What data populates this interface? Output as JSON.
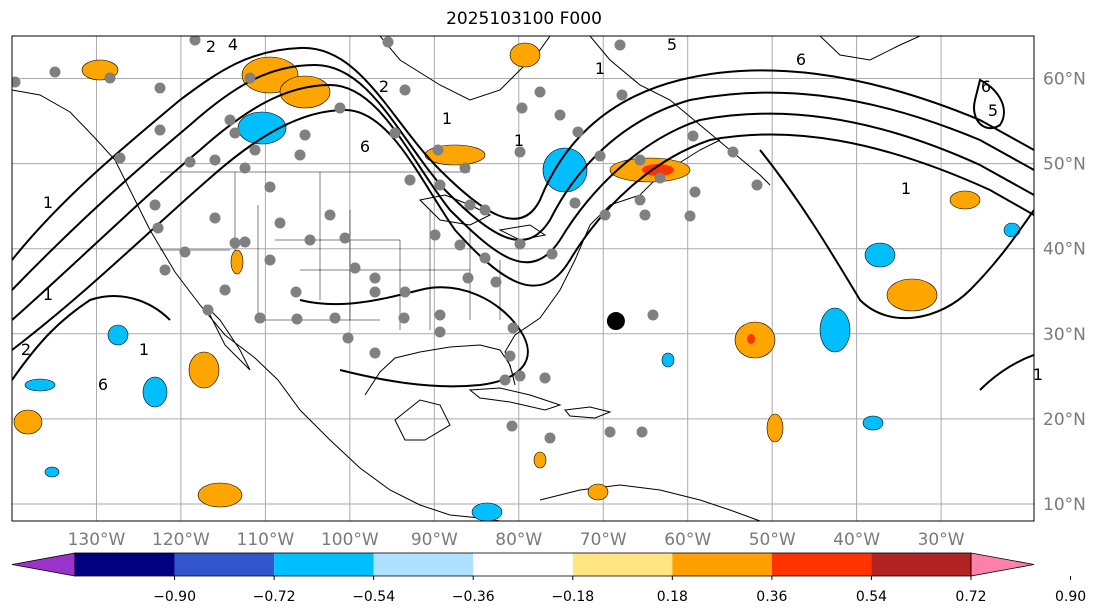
{
  "title": "2025103100 F000",
  "map": {
    "lat_ticks": [
      {
        "value": 60,
        "label": "60°N"
      },
      {
        "value": 50,
        "label": "50°N"
      },
      {
        "value": 40,
        "label": "40°N"
      },
      {
        "value": 30,
        "label": "30°N"
      },
      {
        "value": 20,
        "label": "20°N"
      },
      {
        "value": 10,
        "label": "10°N"
      }
    ],
    "lon_ticks": [
      {
        "value": -130,
        "label": "130°W"
      },
      {
        "value": -120,
        "label": "120°W"
      },
      {
        "value": -110,
        "label": "110°W"
      },
      {
        "value": -100,
        "label": "100°W"
      },
      {
        "value": -90,
        "label": "90°W"
      },
      {
        "value": -80,
        "label": "80°W"
      },
      {
        "value": -70,
        "label": "70°W"
      },
      {
        "value": -60,
        "label": "60°W"
      },
      {
        "value": -50,
        "label": "50°W"
      },
      {
        "value": -40,
        "label": "40°W"
      },
      {
        "value": -30,
        "label": "30°W"
      }
    ],
    "contour_labels": [
      "2",
      "4",
      "1",
      "2",
      "6",
      "1",
      "5",
      "1",
      "6",
      "6",
      "5",
      "1",
      "1",
      "1",
      "2",
      "1",
      "6",
      "1"
    ],
    "marker": {
      "lon": -68.5,
      "lat": 31.5
    }
  },
  "colorbar": {
    "colors": [
      "#9933cc",
      "#000080",
      "#3355cc",
      "#00bfff",
      "#aee0ff",
      "#ffffff",
      "#ffe680",
      "#ffa000",
      "#ff3300",
      "#b22222",
      "#ff80aa"
    ],
    "labels": [
      "−0.90",
      "−0.72",
      "−0.54",
      "−0.36",
      "−0.18",
      "0.18",
      "0.36",
      "0.54",
      "0.72",
      "0.90"
    ]
  },
  "colors": {
    "pos_fill": "#ffa500",
    "neg_fill": "#00bfff",
    "station": "#808080",
    "grid": "#aaaaaa"
  }
}
